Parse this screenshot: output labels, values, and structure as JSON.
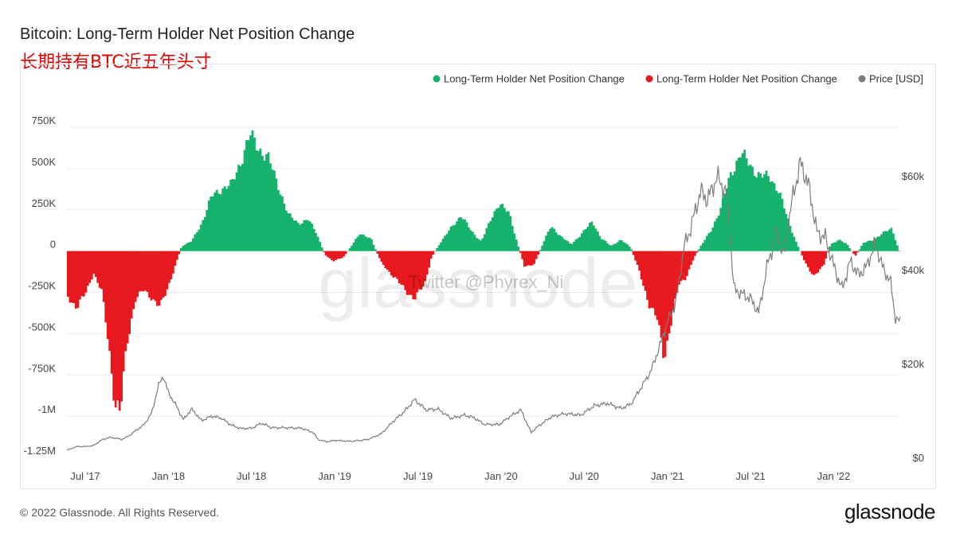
{
  "header": {
    "title": "Bitcoin: Long-Term Holder Net Position Change",
    "subtitle": "长期持有BTC近五年头寸"
  },
  "watermark": {
    "brand": "glassnode",
    "twitter": "Twitter @Phyrex_Ni"
  },
  "footer": {
    "copyright": "© 2022 Glassnode. All Rights Reserved.",
    "brand": "glassnode"
  },
  "colors": {
    "positive": "#14b26b",
    "negative": "#e8191e",
    "price": "#7d7d7d",
    "grid": "#ececec"
  },
  "chart_data": {
    "type": "bar",
    "title": "Bitcoin: Long-Term Holder Net Position Change",
    "legend": [
      {
        "label": "Long-Term Holder Net Position Change",
        "color": "#14b26b"
      },
      {
        "label": "Long-Term Holder Net Position Change",
        "color": "#e8191e"
      },
      {
        "label": "Price [USD]",
        "color": "#7d7d7d"
      }
    ],
    "legend_position": "top-right",
    "x_ticks": [
      {
        "label": "Jul '17",
        "t": 2017.5
      },
      {
        "label": "Jan '18",
        "t": 2018.0
      },
      {
        "label": "Jul '18",
        "t": 2018.5
      },
      {
        "label": "Jan '19",
        "t": 2019.0
      },
      {
        "label": "Jul '19",
        "t": 2019.5
      },
      {
        "label": "Jan '20",
        "t": 2020.0
      },
      {
        "label": "Jul '20",
        "t": 2020.5
      },
      {
        "label": "Jan '21",
        "t": 2021.0
      },
      {
        "label": "Jul '21",
        "t": 2021.5
      },
      {
        "label": "Jan '22",
        "t": 2022.0
      }
    ],
    "x_range": [
      2017.39,
      2022.4
    ],
    "y_left": {
      "range": [
        -1250000,
        750000
      ],
      "ticks": [
        {
          "label": "750K",
          "v": 750000
        },
        {
          "label": "500K",
          "v": 500000
        },
        {
          "label": "250K",
          "v": 250000
        },
        {
          "label": "0",
          "v": 0
        },
        {
          "label": "-250K",
          "v": -250000
        },
        {
          "label": "-500K",
          "v": -500000
        },
        {
          "label": "-750K",
          "v": -750000
        },
        {
          "label": "-1M",
          "v": -1000000
        },
        {
          "label": "-1.25M",
          "v": -1250000
        }
      ]
    },
    "y_right": {
      "range": [
        0,
        70000
      ],
      "ticks": [
        {
          "label": "$60k",
          "v": 60000
        },
        {
          "label": "$40k",
          "v": 40000
        },
        {
          "label": "$20k",
          "v": 20000
        },
        {
          "label": "$0",
          "v": 0
        }
      ]
    },
    "net_position_change": [
      [
        2017.39,
        -270000
      ],
      [
        2017.45,
        -340000
      ],
      [
        2017.5,
        -260000
      ],
      [
        2017.55,
        -130000
      ],
      [
        2017.6,
        -250000
      ],
      [
        2017.64,
        -560000
      ],
      [
        2017.68,
        -920000
      ],
      [
        2017.71,
        -990000
      ],
      [
        2017.75,
        -560000
      ],
      [
        2017.8,
        -290000
      ],
      [
        2017.85,
        -240000
      ],
      [
        2017.9,
        -280000
      ],
      [
        2017.95,
        -340000
      ],
      [
        2017.99,
        -240000
      ],
      [
        2018.04,
        -90000
      ],
      [
        2018.08,
        30000
      ],
      [
        2018.14,
        60000
      ],
      [
        2018.2,
        170000
      ],
      [
        2018.26,
        330000
      ],
      [
        2018.32,
        380000
      ],
      [
        2018.38,
        400000
      ],
      [
        2018.44,
        560000
      ],
      [
        2018.49,
        700000
      ],
      [
        2018.54,
        630000
      ],
      [
        2018.6,
        560000
      ],
      [
        2018.66,
        400000
      ],
      [
        2018.72,
        220000
      ],
      [
        2018.78,
        170000
      ],
      [
        2018.84,
        190000
      ],
      [
        2018.89,
        110000
      ],
      [
        2018.94,
        -20000
      ],
      [
        2018.99,
        -60000
      ],
      [
        2019.05,
        -40000
      ],
      [
        2019.1,
        30000
      ],
      [
        2019.15,
        110000
      ],
      [
        2019.22,
        70000
      ],
      [
        2019.28,
        -70000
      ],
      [
        2019.35,
        -150000
      ],
      [
        2019.42,
        -230000
      ],
      [
        2019.48,
        -290000
      ],
      [
        2019.54,
        -200000
      ],
      [
        2019.58,
        -40000
      ],
      [
        2019.64,
        60000
      ],
      [
        2019.7,
        140000
      ],
      [
        2019.76,
        220000
      ],
      [
        2019.82,
        120000
      ],
      [
        2019.88,
        60000
      ],
      [
        2019.94,
        190000
      ],
      [
        2019.99,
        300000
      ],
      [
        2020.05,
        220000
      ],
      [
        2020.1,
        40000
      ],
      [
        2020.14,
        -90000
      ],
      [
        2020.2,
        -80000
      ],
      [
        2020.24,
        20000
      ],
      [
        2020.3,
        150000
      ],
      [
        2020.36,
        90000
      ],
      [
        2020.42,
        40000
      ],
      [
        2020.48,
        100000
      ],
      [
        2020.55,
        180000
      ],
      [
        2020.6,
        80000
      ],
      [
        2020.66,
        30000
      ],
      [
        2020.72,
        70000
      ],
      [
        2020.78,
        20000
      ],
      [
        2020.83,
        -120000
      ],
      [
        2020.89,
        -320000
      ],
      [
        2020.94,
        -420000
      ],
      [
        2020.98,
        -640000
      ],
      [
        2021.02,
        -440000
      ],
      [
        2021.07,
        -200000
      ],
      [
        2021.11,
        -160000
      ],
      [
        2021.16,
        -40000
      ],
      [
        2021.2,
        30000
      ],
      [
        2021.26,
        120000
      ],
      [
        2021.32,
        260000
      ],
      [
        2021.38,
        460000
      ],
      [
        2021.44,
        600000
      ],
      [
        2021.5,
        510000
      ],
      [
        2021.56,
        460000
      ],
      [
        2021.62,
        440000
      ],
      [
        2021.67,
        370000
      ],
      [
        2021.72,
        200000
      ],
      [
        2021.78,
        40000
      ],
      [
        2021.83,
        -70000
      ],
      [
        2021.88,
        -160000
      ],
      [
        2021.94,
        -80000
      ],
      [
        2021.98,
        40000
      ],
      [
        2022.03,
        70000
      ],
      [
        2022.08,
        40000
      ],
      [
        2022.13,
        -30000
      ],
      [
        2022.18,
        50000
      ],
      [
        2022.24,
        70000
      ],
      [
        2022.3,
        110000
      ],
      [
        2022.35,
        140000
      ],
      [
        2022.38,
        40000
      ],
      [
        2022.4,
        -20000
      ]
    ],
    "price_usd": [
      [
        2017.39,
        1700
      ],
      [
        2017.45,
        2500
      ],
      [
        2017.5,
        2500
      ],
      [
        2017.55,
        2700
      ],
      [
        2017.6,
        3900
      ],
      [
        2017.64,
        4400
      ],
      [
        2017.68,
        4300
      ],
      [
        2017.72,
        4000
      ],
      [
        2017.76,
        4700
      ],
      [
        2017.8,
        5800
      ],
      [
        2017.85,
        7000
      ],
      [
        2017.9,
        9600
      ],
      [
        2017.94,
        15500
      ],
      [
        2017.97,
        17500
      ],
      [
        2018.0,
        14000
      ],
      [
        2018.05,
        11000
      ],
      [
        2018.09,
        8200
      ],
      [
        2018.14,
        10500
      ],
      [
        2018.2,
        8000
      ],
      [
        2018.26,
        9000
      ],
      [
        2018.32,
        8500
      ],
      [
        2018.38,
        7000
      ],
      [
        2018.44,
        6300
      ],
      [
        2018.5,
        6400
      ],
      [
        2018.56,
        7500
      ],
      [
        2018.62,
        6500
      ],
      [
        2018.7,
        6500
      ],
      [
        2018.8,
        6400
      ],
      [
        2018.87,
        5500
      ],
      [
        2018.9,
        4000
      ],
      [
        2018.95,
        3500
      ],
      [
        2019.0,
        3800
      ],
      [
        2019.1,
        3600
      ],
      [
        2019.2,
        4000
      ],
      [
        2019.28,
        5200
      ],
      [
        2019.35,
        7800
      ],
      [
        2019.42,
        10000
      ],
      [
        2019.48,
        12500
      ],
      [
        2019.55,
        10300
      ],
      [
        2019.62,
        10500
      ],
      [
        2019.7,
        8500
      ],
      [
        2019.78,
        9200
      ],
      [
        2019.84,
        8600
      ],
      [
        2019.9,
        7200
      ],
      [
        2019.99,
        7200
      ],
      [
        2020.05,
        8800
      ],
      [
        2020.12,
        10300
      ],
      [
        2020.18,
        5500
      ],
      [
        2020.22,
        6700
      ],
      [
        2020.3,
        8800
      ],
      [
        2020.38,
        9500
      ],
      [
        2020.48,
        9200
      ],
      [
        2020.56,
        11200
      ],
      [
        2020.64,
        11700
      ],
      [
        2020.72,
        10600
      ],
      [
        2020.78,
        11500
      ],
      [
        2020.85,
        15500
      ],
      [
        2020.9,
        18500
      ],
      [
        2020.95,
        23500
      ],
      [
        2021.0,
        29000
      ],
      [
        2021.05,
        33000
      ],
      [
        2021.1,
        45000
      ],
      [
        2021.14,
        49000
      ],
      [
        2021.2,
        57000
      ],
      [
        2021.24,
        55000
      ],
      [
        2021.3,
        60000
      ],
      [
        2021.36,
        56000
      ],
      [
        2021.4,
        36000
      ],
      [
        2021.45,
        35000
      ],
      [
        2021.5,
        34000
      ],
      [
        2021.55,
        31000
      ],
      [
        2021.6,
        41000
      ],
      [
        2021.66,
        48000
      ],
      [
        2021.7,
        43000
      ],
      [
        2021.75,
        55000
      ],
      [
        2021.8,
        63000
      ],
      [
        2021.85,
        58000
      ],
      [
        2021.9,
        48000
      ],
      [
        2021.95,
        47000
      ],
      [
        2022.0,
        41000
      ],
      [
        2022.05,
        36000
      ],
      [
        2022.1,
        42000
      ],
      [
        2022.15,
        39000
      ],
      [
        2022.2,
        41000
      ],
      [
        2022.25,
        46000
      ],
      [
        2022.3,
        40000
      ],
      [
        2022.34,
        38000
      ],
      [
        2022.37,
        30000
      ],
      [
        2022.4,
        29000
      ]
    ]
  }
}
